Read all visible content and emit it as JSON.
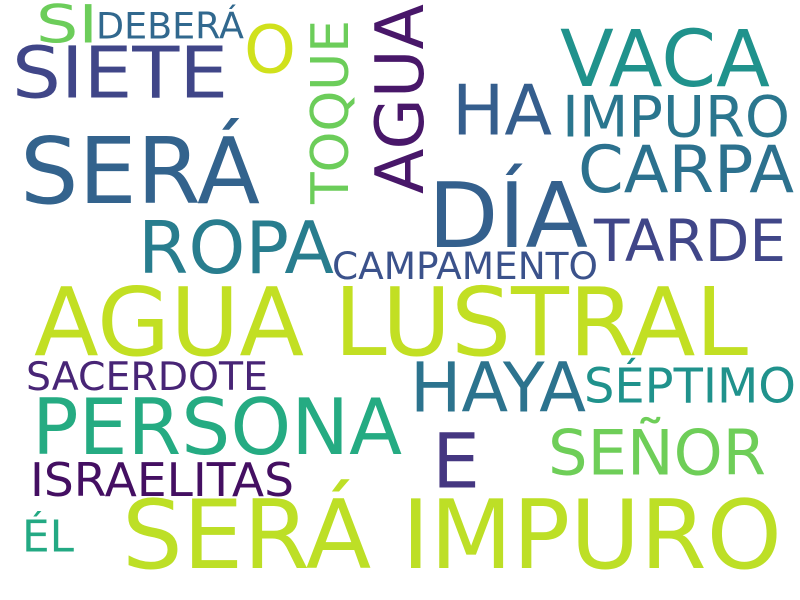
{
  "words": [
    {
      "text": "AGUA LUSTRAL",
      "color": "#c2df23"
    },
    {
      "text": "SERÁ IMPURO",
      "color": "#bddf26"
    },
    {
      "text": "SERÁ",
      "color": "#33638d"
    },
    {
      "text": "PERSONA",
      "color": "#25ab82"
    },
    {
      "text": "DÍA",
      "color": "#34608d"
    },
    {
      "text": "ROPA",
      "color": "#287d8e"
    },
    {
      "text": "VACA",
      "color": "#20928c"
    },
    {
      "text": "AGUA",
      "color": "#481769"
    },
    {
      "text": "E",
      "color": "#453781"
    },
    {
      "text": "HA",
      "color": "#355e8d"
    },
    {
      "text": "CARPA",
      "color": "#2c718e"
    },
    {
      "text": "TARDE",
      "color": "#404688"
    },
    {
      "text": "SIETE",
      "color": "#404688"
    },
    {
      "text": "HAYA",
      "color": "#2c738e"
    },
    {
      "text": "SEÑOR",
      "color": "#6ece58"
    },
    {
      "text": "IMPURO",
      "color": "#2a768e"
    },
    {
      "text": "TOQUE",
      "color": "#6ccd5a"
    },
    {
      "text": "O",
      "color": "#d0e11c"
    },
    {
      "text": "SÉPTIMO",
      "color": "#20928c"
    },
    {
      "text": "CAMPAMENTO",
      "color": "#3b528b"
    },
    {
      "text": "SACERDOTE",
      "color": "#482576"
    },
    {
      "text": "ISRAELITAS",
      "color": "#440f62"
    },
    {
      "text": "DEBERÁ",
      "color": "#31688e"
    },
    {
      "text": "SI",
      "color": "#6ccd5a"
    },
    {
      "text": "ÉL",
      "color": "#23a983"
    }
  ]
}
